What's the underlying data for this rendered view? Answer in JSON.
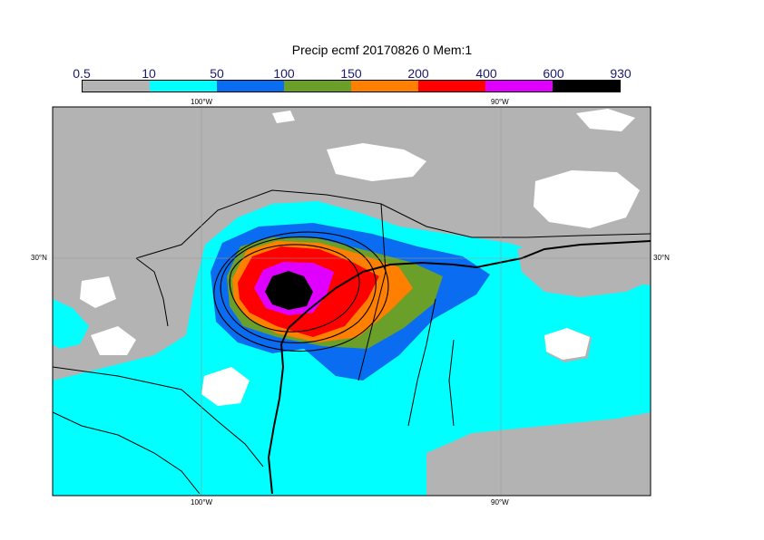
{
  "title": "Precip ecmf 20170826 0 Mem:1",
  "colorbar": {
    "levels": [
      "0.5",
      "10",
      "50",
      "100",
      "150",
      "200",
      "400",
      "600",
      "930"
    ],
    "colors": [
      "#b3b3b3",
      "#00ffff",
      "#0a6cf0",
      "#6a9f2a",
      "#ff8000",
      "#ff0000",
      "#e000ff",
      "#000000"
    ]
  },
  "axes": {
    "lon_top": [
      "100°W",
      "90°W"
    ],
    "lon_bottom": [
      "100°W",
      "90°W"
    ],
    "lat_left": [
      "30°N"
    ],
    "lat_right": [
      "30°N"
    ]
  }
}
